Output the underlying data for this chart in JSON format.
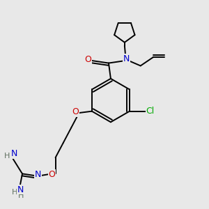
{
  "bg_color": "#e8e8e8",
  "atom_colors": {
    "C": "#000000",
    "N": "#0000cc",
    "O": "#cc0000",
    "Cl": "#00aa00",
    "H": "#607060"
  },
  "lw": 1.4,
  "fig_width": 3.0,
  "fig_height": 3.0,
  "dpi": 100
}
